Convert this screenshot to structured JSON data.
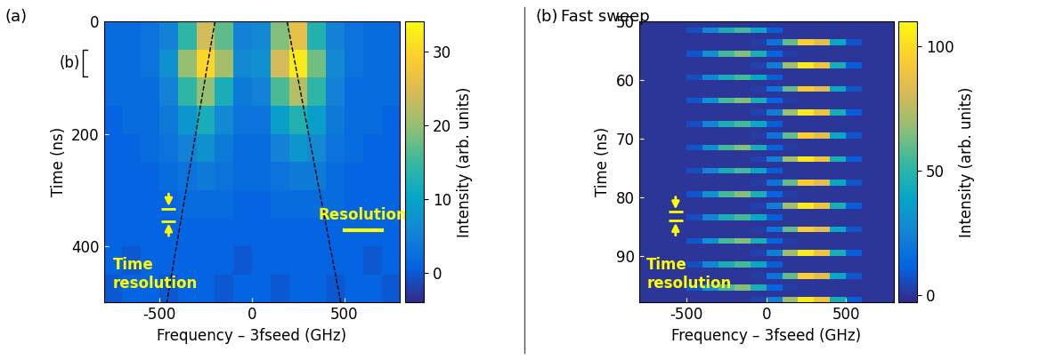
{
  "chart_data": [
    {
      "type": "heatmap",
      "panel": "(a)",
      "xlabel": "Frequency – 3fseed (GHz)",
      "ylabel": "Time (ns)",
      "xlim": [
        -800,
        800
      ],
      "xticks": [
        -500,
        0,
        500
      ],
      "ylim": [
        500,
        0
      ],
      "yticks": [
        0,
        200,
        400
      ],
      "x_edges": [
        -800,
        -700,
        -600,
        -500,
        -400,
        -300,
        -200,
        -100,
        0,
        100,
        200,
        300,
        400,
        500,
        600,
        700,
        800
      ],
      "y_edges": [
        0,
        50,
        100,
        150,
        200,
        250,
        300,
        350,
        400,
        450,
        500
      ],
      "z": [
        [
          2,
          2,
          3,
          5,
          14,
          24,
          17,
          5,
          6,
          19,
          26,
          13,
          5,
          3,
          2,
          2
        ],
        [
          2,
          2,
          3,
          7,
          20,
          30,
          21,
          6,
          7,
          24,
          32,
          18,
          6,
          3,
          2,
          2
        ],
        [
          2,
          2,
          2,
          5,
          14,
          20,
          12,
          4,
          5,
          16,
          22,
          14,
          5,
          2,
          2,
          2
        ],
        [
          1,
          2,
          2,
          4,
          8,
          12,
          6,
          3,
          3,
          9,
          13,
          9,
          4,
          2,
          2,
          1
        ],
        [
          1,
          1,
          2,
          3,
          5,
          7,
          4,
          2,
          2,
          5,
          8,
          6,
          3,
          2,
          1,
          1
        ],
        [
          1,
          1,
          1,
          2,
          3,
          4,
          3,
          2,
          2,
          3,
          4,
          4,
          2,
          1,
          1,
          1
        ],
        [
          1,
          1,
          1,
          1,
          2,
          2,
          2,
          1,
          1,
          2,
          2,
          2,
          2,
          1,
          1,
          1
        ],
        [
          1,
          1,
          1,
          1,
          1,
          1,
          1,
          1,
          1,
          1,
          1,
          1,
          1,
          1,
          1,
          1
        ],
        [
          1,
          0,
          1,
          1,
          1,
          1,
          1,
          0,
          1,
          1,
          1,
          1,
          1,
          1,
          0,
          1
        ],
        [
          0,
          1,
          1,
          0,
          1,
          1,
          0,
          1,
          1,
          0,
          1,
          1,
          0,
          1,
          1,
          0
        ]
      ],
      "colorbar_label": "Intensity (arb. units)",
      "clim": [
        -4,
        34
      ],
      "colorbar_ticks": [
        0,
        10,
        20,
        30
      ],
      "lines": [
        {
          "x": [
            -200,
            -460
          ],
          "y": [
            0,
            500
          ],
          "line_style": "dashed",
          "color": "#000000"
        },
        {
          "x": [
            190,
            480
          ],
          "y": [
            0,
            500
          ],
          "line_style": "dashed",
          "color": "#000000"
        }
      ],
      "time_resolution": {
        "text": "Time\nresolution",
        "x": -450,
        "y": [
          333,
          355
        ]
      },
      "frequency_resolution": {
        "text": "Resolution",
        "x": [
          500,
          700
        ],
        "y": 372
      }
    },
    {
      "type": "heatmap",
      "panel": "(b)",
      "title": "Fast sweep",
      "xlabel": "Frequency – 3fseed (GHz)",
      "ylabel": "Time (ns)",
      "xlim": [
        -800,
        800
      ],
      "xticks": [
        -500,
        0,
        500
      ],
      "ylim": [
        98,
        50
      ],
      "yticks": [
        50,
        60,
        70,
        80,
        90
      ],
      "x_edges": [
        -800,
        -700,
        -600,
        -500,
        -400,
        -300,
        -200,
        -100,
        0,
        100,
        200,
        300,
        400,
        500,
        600,
        700,
        800
      ],
      "y_edges": [
        50,
        51,
        52,
        53,
        54,
        55,
        56,
        57,
        58,
        59,
        60,
        61,
        62,
        63,
        64,
        65,
        66,
        67,
        68,
        69,
        70,
        71,
        72,
        73,
        74,
        75,
        76,
        77,
        78,
        79,
        80,
        81,
        82,
        83,
        84,
        85,
        86,
        87,
        88,
        89,
        90,
        91,
        92,
        93,
        94,
        95,
        96,
        97,
        98
      ],
      "z": [
        [
          0,
          0,
          0,
          0,
          0,
          0,
          0,
          0,
          0,
          0,
          0,
          0,
          0,
          0,
          0,
          0
        ],
        [
          0,
          0,
          0,
          6,
          25,
          45,
          55,
          40,
          10,
          0,
          0,
          0,
          0,
          0,
          0,
          0
        ],
        [
          0,
          0,
          0,
          0,
          0,
          0,
          0,
          0,
          0,
          0,
          0,
          0,
          0,
          0,
          0,
          0
        ],
        [
          0,
          0,
          0,
          0,
          0,
          0,
          0,
          2,
          18,
          60,
          95,
          85,
          40,
          8,
          0,
          0
        ],
        [
          0,
          0,
          0,
          0,
          0,
          0,
          0,
          0,
          0,
          0,
          0,
          0,
          0,
          0,
          0,
          0
        ],
        [
          0,
          0,
          0,
          8,
          30,
          55,
          65,
          45,
          12,
          2,
          0,
          0,
          0,
          0,
          0,
          0
        ],
        [
          0,
          0,
          0,
          0,
          0,
          0,
          0,
          0,
          0,
          0,
          0,
          0,
          0,
          0,
          0,
          0
        ],
        [
          0,
          0,
          0,
          0,
          0,
          0,
          0,
          3,
          22,
          70,
          105,
          90,
          45,
          10,
          0,
          0
        ],
        [
          0,
          0,
          0,
          0,
          0,
          0,
          0,
          0,
          0,
          0,
          0,
          0,
          0,
          0,
          0,
          0
        ],
        [
          0,
          0,
          0,
          6,
          25,
          45,
          55,
          40,
          10,
          0,
          0,
          0,
          0,
          0,
          0,
          0
        ],
        [
          0,
          0,
          0,
          0,
          0,
          0,
          0,
          0,
          0,
          0,
          0,
          0,
          0,
          0,
          0,
          0
        ],
        [
          0,
          0,
          0,
          0,
          0,
          0,
          0,
          2,
          18,
          60,
          95,
          85,
          40,
          8,
          0,
          0
        ],
        [
          0,
          0,
          0,
          0,
          0,
          0,
          0,
          0,
          0,
          0,
          0,
          0,
          0,
          0,
          0,
          0
        ],
        [
          0,
          0,
          0,
          8,
          30,
          55,
          65,
          45,
          12,
          2,
          0,
          0,
          0,
          0,
          0,
          0
        ],
        [
          0,
          0,
          0,
          0,
          0,
          0,
          0,
          0,
          0,
          0,
          0,
          0,
          0,
          0,
          0,
          0
        ],
        [
          0,
          0,
          0,
          0,
          0,
          0,
          0,
          3,
          22,
          70,
          105,
          90,
          45,
          10,
          0,
          0
        ],
        [
          0,
          0,
          0,
          0,
          0,
          0,
          0,
          0,
          0,
          0,
          0,
          0,
          0,
          0,
          0,
          0
        ],
        [
          0,
          0,
          0,
          6,
          25,
          45,
          55,
          40,
          10,
          0,
          0,
          0,
          0,
          0,
          0,
          0
        ],
        [
          0,
          0,
          0,
          0,
          0,
          0,
          0,
          0,
          0,
          0,
          0,
          0,
          0,
          0,
          0,
          0
        ],
        [
          0,
          0,
          0,
          0,
          0,
          0,
          0,
          2,
          18,
          60,
          95,
          85,
          40,
          8,
          0,
          0
        ],
        [
          0,
          0,
          0,
          0,
          0,
          0,
          0,
          0,
          0,
          0,
          0,
          0,
          0,
          0,
          0,
          0
        ],
        [
          0,
          0,
          0,
          8,
          30,
          55,
          65,
          45,
          12,
          2,
          0,
          0,
          0,
          0,
          0,
          0
        ],
        [
          0,
          0,
          0,
          0,
          0,
          0,
          0,
          0,
          0,
          0,
          0,
          0,
          0,
          0,
          0,
          0
        ],
        [
          0,
          0,
          0,
          0,
          0,
          0,
          0,
          3,
          22,
          70,
          105,
          90,
          45,
          10,
          0,
          0
        ],
        [
          0,
          0,
          0,
          0,
          0,
          0,
          0,
          0,
          0,
          0,
          0,
          0,
          0,
          0,
          0,
          0
        ],
        [
          0,
          0,
          0,
          6,
          25,
          45,
          55,
          40,
          10,
          0,
          0,
          0,
          0,
          0,
          0,
          0
        ],
        [
          0,
          0,
          0,
          0,
          0,
          0,
          0,
          0,
          0,
          0,
          0,
          0,
          0,
          0,
          0,
          0
        ],
        [
          0,
          0,
          0,
          0,
          0,
          0,
          0,
          2,
          18,
          60,
          95,
          85,
          40,
          8,
          0,
          0
        ],
        [
          0,
          0,
          0,
          0,
          0,
          0,
          0,
          0,
          0,
          0,
          0,
          0,
          0,
          0,
          0,
          0
        ],
        [
          0,
          0,
          0,
          8,
          30,
          55,
          65,
          45,
          12,
          2,
          0,
          0,
          0,
          0,
          0,
          0
        ],
        [
          0,
          0,
          0,
          0,
          0,
          0,
          0,
          0,
          0,
          0,
          0,
          0,
          0,
          0,
          0,
          0
        ],
        [
          0,
          0,
          0,
          0,
          0,
          0,
          0,
          3,
          22,
          70,
          105,
          90,
          45,
          10,
          0,
          0
        ],
        [
          0,
          0,
          0,
          0,
          0,
          0,
          0,
          0,
          0,
          0,
          0,
          0,
          0,
          0,
          0,
          0
        ],
        [
          0,
          0,
          0,
          6,
          25,
          45,
          55,
          40,
          10,
          0,
          0,
          0,
          0,
          0,
          0,
          0
        ],
        [
          0,
          0,
          0,
          0,
          0,
          0,
          0,
          0,
          0,
          0,
          0,
          0,
          0,
          0,
          0,
          0
        ],
        [
          0,
          0,
          0,
          0,
          0,
          0,
          0,
          2,
          18,
          60,
          95,
          85,
          40,
          8,
          0,
          0
        ],
        [
          0,
          0,
          0,
          0,
          0,
          0,
          0,
          0,
          0,
          0,
          0,
          0,
          0,
          0,
          0,
          0
        ],
        [
          0,
          0,
          0,
          8,
          30,
          55,
          65,
          45,
          12,
          2,
          0,
          0,
          0,
          0,
          0,
          0
        ],
        [
          0,
          0,
          0,
          0,
          0,
          0,
          0,
          0,
          0,
          0,
          0,
          0,
          0,
          0,
          0,
          0
        ],
        [
          0,
          0,
          0,
          0,
          0,
          0,
          0,
          3,
          22,
          70,
          105,
          90,
          45,
          10,
          0,
          0
        ],
        [
          0,
          0,
          0,
          0,
          0,
          0,
          0,
          0,
          0,
          0,
          0,
          0,
          0,
          0,
          0,
          0
        ],
        [
          0,
          0,
          0,
          6,
          25,
          45,
          55,
          40,
          10,
          0,
          0,
          0,
          0,
          0,
          0,
          0
        ],
        [
          0,
          0,
          0,
          0,
          0,
          0,
          0,
          0,
          0,
          0,
          0,
          0,
          0,
          0,
          0,
          0
        ],
        [
          0,
          0,
          0,
          0,
          0,
          0,
          0,
          2,
          18,
          60,
          95,
          85,
          40,
          8,
          0,
          0
        ],
        [
          0,
          0,
          0,
          0,
          0,
          0,
          0,
          0,
          0,
          0,
          0,
          0,
          0,
          0,
          0,
          0
        ],
        [
          0,
          0,
          0,
          8,
          30,
          55,
          65,
          45,
          12,
          2,
          0,
          0,
          0,
          0,
          0,
          0
        ],
        [
          0,
          0,
          0,
          0,
          0,
          0,
          0,
          0,
          0,
          0,
          0,
          0,
          0,
          0,
          0,
          0
        ],
        [
          0,
          0,
          0,
          0,
          0,
          0,
          0,
          3,
          22,
          70,
          105,
          90,
          45,
          10,
          0,
          0
        ]
      ],
      "colorbar_label": "Intensity (arb. units)",
      "clim": [
        -3,
        110
      ],
      "colorbar_ticks": [
        0,
        50,
        100
      ],
      "time_resolution": {
        "text": "Time\nresolution",
        "x": -570,
        "y": [
          82.5,
          84
        ]
      }
    }
  ]
}
